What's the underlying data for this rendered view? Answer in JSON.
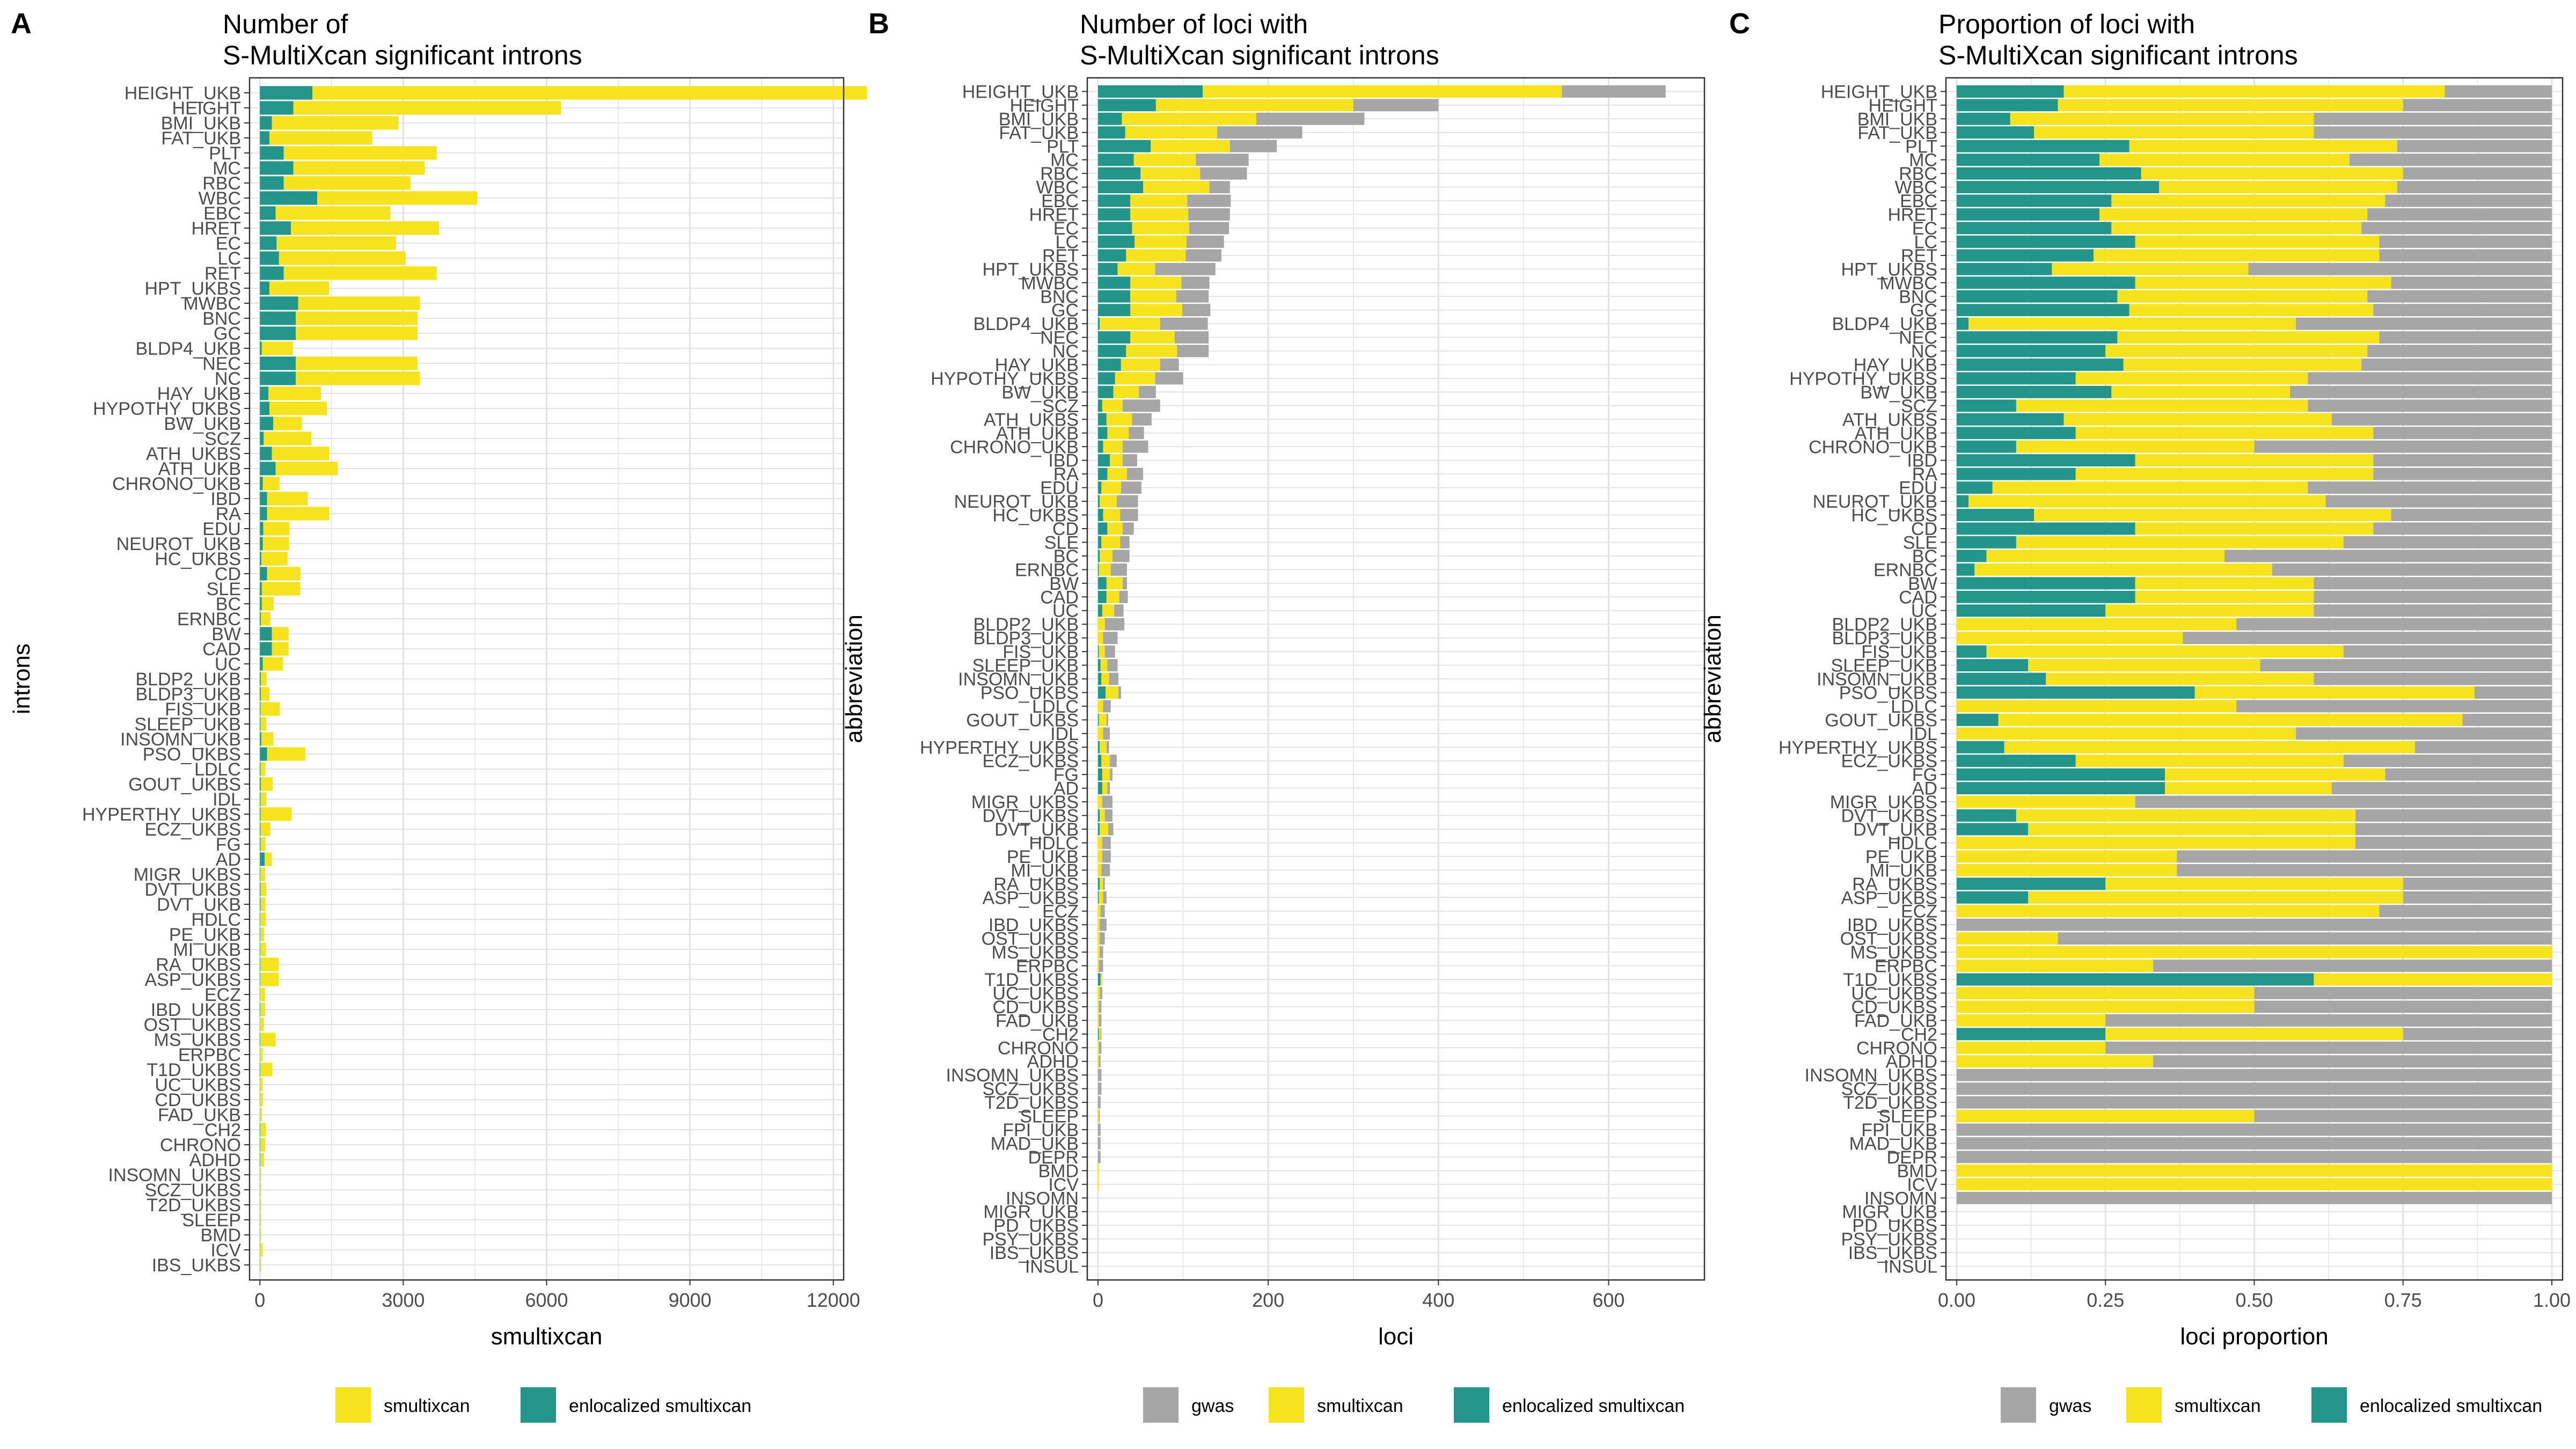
{
  "colors": {
    "gwas": "#a6a6a6",
    "smultixcan": "#f6e21d",
    "enlocalized": "#23958a",
    "grid": "#e3e3e3",
    "text": "#4d4d4d",
    "black": "#000000"
  },
  "chart_data": [
    {
      "type": "bar",
      "orientation": "horizontal",
      "stacked": true,
      "panel_letter": "A",
      "title_lines": [
        "Number of",
        "S-MultiXcan significant introns"
      ],
      "xlabel": "smultixcan",
      "ylabel": "introns",
      "xlim": [
        0,
        12000
      ],
      "xticks": [
        0,
        3000,
        6000,
        9000,
        12000
      ],
      "xtick_labels": [
        "0",
        "3000",
        "6000",
        "9000",
        "12000"
      ],
      "grid": true,
      "legend_position": "bottom",
      "categories": [
        "HEIGHT_UKB",
        "HEIGHT",
        "BMI_UKB",
        "FAT_UKB",
        "PLT",
        "MC",
        "RBC",
        "WBC",
        "EBC",
        "HRET",
        "EC",
        "LC",
        "RET",
        "HPT_UKBS",
        "MWBC",
        "BNC",
        "GC",
        "BLDP4_UKB",
        "NEC",
        "NC",
        "HAY_UKB",
        "HYPOTHY_UKBS",
        "BW_UKB",
        "SCZ",
        "ATH_UKBS",
        "ATH_UKB",
        "CHRONO_UKB",
        "IBD",
        "RA",
        "EDU",
        "NEUROT_UKB",
        "HC_UKBS",
        "CD",
        "SLE",
        "BC",
        "ERNBC",
        "BW",
        "CAD",
        "UC",
        "BLDP2_UKB",
        "BLDP3_UKB",
        "FIS_UKB",
        "SLEEP_UKB",
        "INSOMN_UKB",
        "PSO_UKBS",
        "LDLC",
        "GOUT_UKBS",
        "IDL",
        "HYPERTHY_UKBS",
        "ECZ_UKBS",
        "FG",
        "AD",
        "MIGR_UKBS",
        "DVT_UKBS",
        "DVT_UKB",
        "HDLC",
        "PE_UKB",
        "MI_UKB",
        "RA_UKBS",
        "ASP_UKBS",
        "ECZ",
        "IBD_UKBS",
        "OST_UKBS",
        "MS_UKBS",
        "ERPBC",
        "T1D_UKBS",
        "UC_UKBS",
        "CD_UKBS",
        "FAD_UKB",
        "CH2",
        "CHRONO",
        "ADHD",
        "INSOMN_UKBS",
        "SCZ_UKBS",
        "T2D_UKBS",
        "SLEEP",
        "BMD",
        "ICV",
        "IBS_UKBS"
      ],
      "series": [
        {
          "name": "enlocalized smultixcan",
          "values": [
            1100,
            700,
            250,
            200,
            500,
            700,
            500,
            1200,
            330,
            650,
            350,
            400,
            500,
            200,
            800,
            750,
            750,
            40,
            750,
            750,
            180,
            200,
            280,
            80,
            250,
            330,
            60,
            150,
            150,
            70,
            60,
            30,
            150,
            40,
            40,
            20,
            250,
            250,
            60,
            20,
            20,
            15,
            15,
            30,
            150,
            15,
            20,
            15,
            15,
            15,
            15,
            100,
            10,
            15,
            15,
            10,
            10,
            10,
            10,
            10,
            5,
            10,
            5,
            10,
            5,
            10,
            5,
            5,
            5,
            10,
            10,
            10,
            5,
            5,
            5,
            5,
            5,
            5,
            5
          ]
        },
        {
          "name": "smultixcan",
          "values": [
            11600,
            5600,
            2650,
            2150,
            3200,
            2750,
            2650,
            3350,
            2400,
            3100,
            2500,
            2650,
            3200,
            1250,
            2550,
            2550,
            2550,
            650,
            2550,
            2600,
            1100,
            1200,
            600,
            1000,
            1200,
            1300,
            350,
            850,
            1300,
            550,
            550,
            550,
            700,
            800,
            250,
            200,
            350,
            350,
            420,
            120,
            180,
            400,
            120,
            250,
            800,
            100,
            250,
            120,
            650,
            200,
            100,
            150,
            100,
            120,
            100,
            120,
            80,
            120,
            380,
            380,
            100,
            100,
            80,
            320,
            50,
            250,
            50,
            60,
            40,
            120,
            100,
            80,
            20,
            20,
            20,
            20,
            20,
            50,
            20
          ]
        }
      ]
    },
    {
      "type": "bar",
      "orientation": "horizontal",
      "stacked": true,
      "panel_letter": "B",
      "title_lines": [
        "Number of loci with",
        "S-MultiXcan significant introns"
      ],
      "xlabel": "loci",
      "ylabel": "abbreviation",
      "xlim": [
        0,
        700
      ],
      "xticks": [
        0,
        200,
        400,
        600
      ],
      "xtick_labels": [
        "0",
        "200",
        "400",
        "600"
      ],
      "grid": true,
      "legend_position": "bottom",
      "categories": [
        "HEIGHT_UKB",
        "HEIGHT",
        "BMI_UKB",
        "FAT_UKB",
        "PLT",
        "MC",
        "RBC",
        "WBC",
        "EBC",
        "HRET",
        "EC",
        "LC",
        "RET",
        "HPT_UKBS",
        "MWBC",
        "BNC",
        "GC",
        "BLDP4_UKB",
        "NEC",
        "NC",
        "HAY_UKB",
        "HYPOTHY_UKBS",
        "BW_UKB",
        "SCZ",
        "ATH_UKBS",
        "ATH_UKB",
        "CHRONO_UKB",
        "IBD",
        "RA",
        "EDU",
        "NEUROT_UKB",
        "HC_UKBS",
        "CD",
        "SLE",
        "BC",
        "ERNBC",
        "BW",
        "CAD",
        "UC",
        "BLDP2_UKB",
        "BLDP3_UKB",
        "FIS_UKB",
        "SLEEP_UKB",
        "INSOMN_UKB",
        "PSO_UKBS",
        "LDLC",
        "GOUT_UKBS",
        "IDL",
        "HYPERTHY_UKBS",
        "ECZ_UKBS",
        "FG",
        "AD",
        "MIGR_UKBS",
        "DVT_UKBS",
        "DVT_UKB",
        "HDLC",
        "PE_UKB",
        "MI_UKB",
        "RA_UKBS",
        "ASP_UKBS",
        "ECZ",
        "IBD_UKBS",
        "OST_UKBS",
        "MS_UKBS",
        "ERPBC",
        "T1D_UKBS",
        "UC_UKBS",
        "CD_UKBS",
        "FAD_UKB",
        "CH2",
        "CHRONO",
        "ADHD",
        "INSOMN_UKBS",
        "SCZ_UKBS",
        "T2D_UKBS",
        "SLEEP",
        "FPI_UKB",
        "MAD_UKB",
        "DEPR",
        "BMD",
        "ICV",
        "INSOMN",
        "MIGR_UKB",
        "PD_UKBS",
        "PSY_UKBS",
        "IBS_UKBS",
        "INSUL"
      ],
      "series": [
        {
          "name": "enlocalized smultixcan",
          "values": [
            123,
            68,
            28,
            32,
            62,
            42,
            50,
            53,
            38,
            38,
            40,
            43,
            33,
            23,
            38,
            38,
            38,
            2,
            38,
            33,
            27,
            20,
            18,
            5,
            10,
            11,
            6,
            14,
            11,
            4,
            2,
            6,
            11,
            4,
            2,
            1,
            10,
            10,
            5,
            0,
            0,
            1,
            3,
            4,
            9,
            0,
            1,
            0,
            2,
            4,
            5,
            5,
            0,
            2,
            2,
            0,
            0,
            0,
            2,
            1,
            0,
            0,
            0,
            0,
            0,
            3,
            0,
            0,
            0,
            1,
            0,
            0,
            0,
            0,
            0,
            0,
            0,
            0,
            0,
            0,
            0,
            0,
            0,
            0,
            0,
            0,
            0
          ]
        },
        {
          "name": "smultixcan",
          "values": [
            422,
            232,
            158,
            108,
            93,
            73,
            70,
            78,
            67,
            68,
            67,
            61,
            70,
            44,
            60,
            54,
            61,
            71,
            52,
            60,
            46,
            47,
            30,
            24,
            30,
            25,
            23,
            15,
            23,
            23,
            20,
            20,
            18,
            22,
            15,
            14,
            19,
            15,
            14,
            8,
            6,
            7,
            8,
            9,
            15,
            6,
            9,
            6,
            8,
            10,
            9,
            6,
            5,
            6,
            10,
            5,
            5,
            4,
            4,
            5,
            3,
            2,
            2,
            2,
            1,
            2,
            2,
            1,
            1,
            2,
            1,
            1,
            0,
            0,
            0,
            1,
            0,
            0,
            0,
            1,
            1,
            0,
            0,
            0,
            0,
            0,
            0
          ]
        },
        {
          "name": "gwas",
          "values": [
            122,
            100,
            127,
            100,
            55,
            62,
            55,
            24,
            51,
            49,
            47,
            44,
            42,
            71,
            33,
            38,
            33,
            56,
            40,
            37,
            22,
            33,
            20,
            44,
            23,
            18,
            30,
            17,
            19,
            24,
            25,
            21,
            13,
            11,
            20,
            19,
            5,
            10,
            11,
            23,
            17,
            12,
            12,
            11,
            3,
            9,
            2,
            8,
            3,
            8,
            3,
            3,
            12,
            9,
            6,
            10,
            10,
            10,
            2,
            4,
            5,
            8,
            6,
            4,
            5,
            0,
            3,
            3,
            3,
            1,
            3,
            2,
            4,
            4,
            3,
            1,
            3,
            3,
            3,
            0,
            0,
            0,
            0,
            0,
            0,
            0,
            0
          ]
        }
      ]
    },
    {
      "type": "bar",
      "orientation": "horizontal",
      "stacked": true,
      "panel_letter": "C",
      "title_lines": [
        "Proportion of loci with",
        "S-MultiXcan significant introns"
      ],
      "xlabel": "loci proportion",
      "ylabel": "abbreviation",
      "xlim": [
        0,
        1
      ],
      "xticks": [
        0,
        0.25,
        0.5,
        0.75,
        1
      ],
      "xtick_labels": [
        "0.00",
        "0.25",
        "0.50",
        "0.75",
        "1.00"
      ],
      "grid": true,
      "legend_position": "bottom",
      "categories": [
        "HEIGHT_UKB",
        "HEIGHT",
        "BMI_UKB",
        "FAT_UKB",
        "PLT",
        "MC",
        "RBC",
        "WBC",
        "EBC",
        "HRET",
        "EC",
        "LC",
        "RET",
        "HPT_UKBS",
        "MWBC",
        "BNC",
        "GC",
        "BLDP4_UKB",
        "NEC",
        "NC",
        "HAY_UKB",
        "HYPOTHY_UKBS",
        "BW_UKB",
        "SCZ",
        "ATH_UKBS",
        "ATH_UKB",
        "CHRONO_UKB",
        "IBD",
        "RA",
        "EDU",
        "NEUROT_UKB",
        "HC_UKBS",
        "CD",
        "SLE",
        "BC",
        "ERNBC",
        "BW",
        "CAD",
        "UC",
        "BLDP2_UKB",
        "BLDP3_UKB",
        "FIS_UKB",
        "SLEEP_UKB",
        "INSOMN_UKB",
        "PSO_UKBS",
        "LDLC",
        "GOUT_UKBS",
        "IDL",
        "HYPERTHY_UKBS",
        "ECZ_UKBS",
        "FG",
        "AD",
        "MIGR_UKBS",
        "DVT_UKBS",
        "DVT_UKB",
        "HDLC",
        "PE_UKB",
        "MI_UKB",
        "RA_UKBS",
        "ASP_UKBS",
        "ECZ",
        "IBD_UKBS",
        "OST_UKBS",
        "MS_UKBS",
        "ERPBC",
        "T1D_UKBS",
        "UC_UKBS",
        "CD_UKBS",
        "FAD_UKB",
        "CH2",
        "CHRONO",
        "ADHD",
        "INSOMN_UKBS",
        "SCZ_UKBS",
        "T2D_UKBS",
        "SLEEP",
        "FPI_UKB",
        "MAD_UKB",
        "DEPR",
        "BMD",
        "ICV",
        "INSOMN",
        "MIGR_UKB",
        "PD_UKBS",
        "PSY_UKBS",
        "IBS_UKBS",
        "INSUL"
      ],
      "series": [
        {
          "name": "enlocalized smultixcan",
          "values": [
            0.18,
            0.17,
            0.09,
            0.13,
            0.29,
            0.24,
            0.31,
            0.34,
            0.26,
            0.24,
            0.26,
            0.3,
            0.23,
            0.16,
            0.3,
            0.27,
            0.29,
            0.02,
            0.27,
            0.25,
            0.28,
            0.2,
            0.26,
            0.1,
            0.18,
            0.2,
            0.1,
            0.3,
            0.2,
            0.06,
            0.02,
            0.13,
            0.3,
            0.1,
            0.05,
            0.03,
            0.3,
            0.3,
            0.25,
            0,
            0,
            0.05,
            0.12,
            0.15,
            0.4,
            0,
            0.07,
            0,
            0.08,
            0.2,
            0.35,
            0.35,
            0,
            0.1,
            0.12,
            0,
            0,
            0,
            0.25,
            0.12,
            0,
            0,
            0,
            0,
            0,
            0.6,
            0,
            0,
            0,
            0.25,
            0,
            0,
            0,
            0,
            0,
            0,
            0,
            0,
            0,
            0,
            0,
            0,
            0,
            0,
            0,
            0,
            0
          ]
        },
        {
          "name": "smultixcan",
          "values": [
            0.64,
            0.58,
            0.51,
            0.47,
            0.45,
            0.42,
            0.44,
            0.4,
            0.46,
            0.45,
            0.42,
            0.41,
            0.48,
            0.33,
            0.43,
            0.42,
            0.41,
            0.55,
            0.44,
            0.44,
            0.4,
            0.39,
            0.3,
            0.49,
            0.45,
            0.5,
            0.4,
            0.4,
            0.5,
            0.53,
            0.6,
            0.6,
            0.4,
            0.55,
            0.4,
            0.5,
            0.3,
            0.3,
            0.35,
            0.47,
            0.38,
            0.6,
            0.39,
            0.45,
            0.47,
            0.47,
            0.78,
            0.57,
            0.69,
            0.45,
            0.37,
            0.28,
            0.3,
            0.57,
            0.55,
            0.67,
            0.37,
            0.37,
            0.5,
            0.63,
            0.71,
            0,
            0.17,
            1,
            0.33,
            0.4,
            0.5,
            0.5,
            0.25,
            0.5,
            0.25,
            0.33,
            0,
            0,
            0,
            0.5,
            0,
            0,
            0,
            1,
            1,
            0,
            0,
            0,
            0,
            0,
            0
          ]
        },
        {
          "name": "gwas",
          "values": [
            0.18,
            0.25,
            0.4,
            0.4,
            0.26,
            0.34,
            0.25,
            0.26,
            0.28,
            0.31,
            0.32,
            0.29,
            0.29,
            0.51,
            0.27,
            0.31,
            0.3,
            0.43,
            0.29,
            0.31,
            0.32,
            0.41,
            0.44,
            0.41,
            0.37,
            0.3,
            0.5,
            0.3,
            0.3,
            0.41,
            0.38,
            0.27,
            0.3,
            0.35,
            0.55,
            0.47,
            0.4,
            0.4,
            0.4,
            0.53,
            0.62,
            0.35,
            0.49,
            0.4,
            0.13,
            0.53,
            0.15,
            0.43,
            0.23,
            0.35,
            0.28,
            0.37,
            0.7,
            0.33,
            0.33,
            0.33,
            0.63,
            0.63,
            0.25,
            0.25,
            0.29,
            1,
            0.83,
            0,
            0.67,
            0,
            0.5,
            0.5,
            0.75,
            0.25,
            0.75,
            0.67,
            1,
            1,
            1,
            0.5,
            1,
            1,
            1,
            0,
            0,
            1,
            0,
            0,
            0,
            0,
            0
          ]
        }
      ]
    }
  ],
  "legends": [
    {
      "items": [
        {
          "label": "smultixcan",
          "color": "#f6e21d"
        },
        {
          "label": "enlocalized smultixcan",
          "color": "#23958a"
        }
      ]
    },
    {
      "items": [
        {
          "label": "gwas",
          "color": "#a6a6a6"
        },
        {
          "label": "smultixcan",
          "color": "#f6e21d"
        },
        {
          "label": "enlocalized smultixcan",
          "color": "#23958a"
        }
      ]
    },
    {
      "items": [
        {
          "label": "gwas",
          "color": "#a6a6a6"
        },
        {
          "label": "smultixcan",
          "color": "#f6e21d"
        },
        {
          "label": "enlocalized smultixcan",
          "color": "#23958a"
        }
      ]
    }
  ]
}
